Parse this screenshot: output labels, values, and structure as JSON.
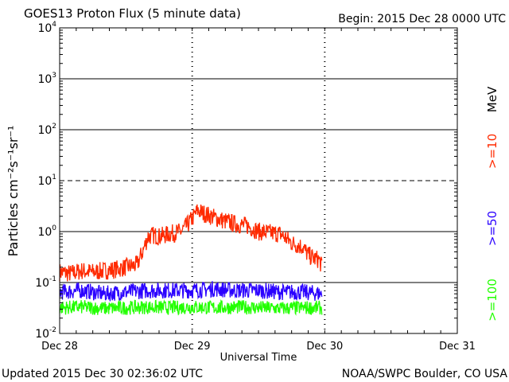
{
  "chart_data": {
    "type": "line",
    "title": "GOES13 Proton Flux (5 minute data)",
    "begin_label": "Begin: 2015 Dec 28 0000 UTC",
    "xlabel": "Universal Time",
    "ylabel": "Particles cm⁻²s⁻¹sr⁻¹",
    "y_scale": "log",
    "ylim": [
      0.01,
      10000
    ],
    "y_ticks": [
      {
        "base": "10",
        "exp": "4",
        "value": 10000
      },
      {
        "base": "10",
        "exp": "3",
        "value": 1000
      },
      {
        "base": "10",
        "exp": "2",
        "value": 100
      },
      {
        "base": "10",
        "exp": "1",
        "value": 10
      },
      {
        "base": "10",
        "exp": "0",
        "value": 1
      },
      {
        "base": "10",
        "exp": "-1",
        "value": 0.1
      },
      {
        "base": "10",
        "exp": "-2",
        "value": 0.01
      }
    ],
    "xlim_hours": [
      0,
      72
    ],
    "x_ticks": [
      {
        "label": "Dec 28",
        "hour": 0
      },
      {
        "label": "Dec 29",
        "hour": 24
      },
      {
        "label": "Dec 30",
        "hour": 48
      },
      {
        "label": "Dec 31",
        "hour": 72
      }
    ],
    "threshold_line": {
      "value": 10,
      "style": "dashed"
    },
    "series": [
      {
        "name": ">=10 MeV",
        "color": "#ff2a00",
        "x_hours": [
          0,
          2,
          4,
          6,
          8,
          10,
          12,
          14,
          15,
          16,
          17,
          18,
          20,
          22,
          23,
          24,
          25,
          26,
          28,
          30,
          32,
          34,
          36,
          38,
          40,
          42,
          44,
          45,
          46,
          47,
          47.5
        ],
        "values": [
          0.16,
          0.15,
          0.17,
          0.16,
          0.17,
          0.18,
          0.2,
          0.22,
          0.4,
          0.8,
          0.85,
          0.8,
          0.9,
          1.0,
          1.3,
          1.8,
          2.6,
          2.3,
          1.9,
          1.6,
          1.4,
          1.3,
          1.0,
          0.95,
          0.9,
          0.6,
          0.5,
          0.35,
          0.3,
          0.28,
          0.2
        ]
      },
      {
        "name": ">=50 MeV",
        "color": "#2a00ff",
        "x_hours": [
          0,
          4,
          8,
          12,
          16,
          20,
          24,
          28,
          32,
          36,
          40,
          44,
          47.5
        ],
        "values": [
          0.065,
          0.07,
          0.06,
          0.065,
          0.07,
          0.07,
          0.07,
          0.075,
          0.07,
          0.07,
          0.065,
          0.065,
          0.06
        ]
      },
      {
        "name": ">=100 MeV",
        "color": "#22ff00",
        "x_hours": [
          0,
          4,
          8,
          12,
          16,
          20,
          24,
          28,
          32,
          36,
          40,
          44,
          47.5
        ],
        "values": [
          0.032,
          0.033,
          0.031,
          0.032,
          0.033,
          0.032,
          0.033,
          0.032,
          0.033,
          0.032,
          0.031,
          0.032,
          0.032
        ]
      }
    ],
    "legend": {
      "position": "right",
      "entries": [
        {
          "label": ">=10",
          "color": "#ff2a00"
        },
        {
          "label": ">=50",
          "color": "#2a00ff"
        },
        {
          "label": ">=100",
          "color": "#22ff00"
        }
      ],
      "unit": "MeV"
    }
  },
  "footer": {
    "updated": "Updated 2015 Dec 30 02:36:02 UTC",
    "source": "NOAA/SWPC Boulder, CO USA"
  }
}
